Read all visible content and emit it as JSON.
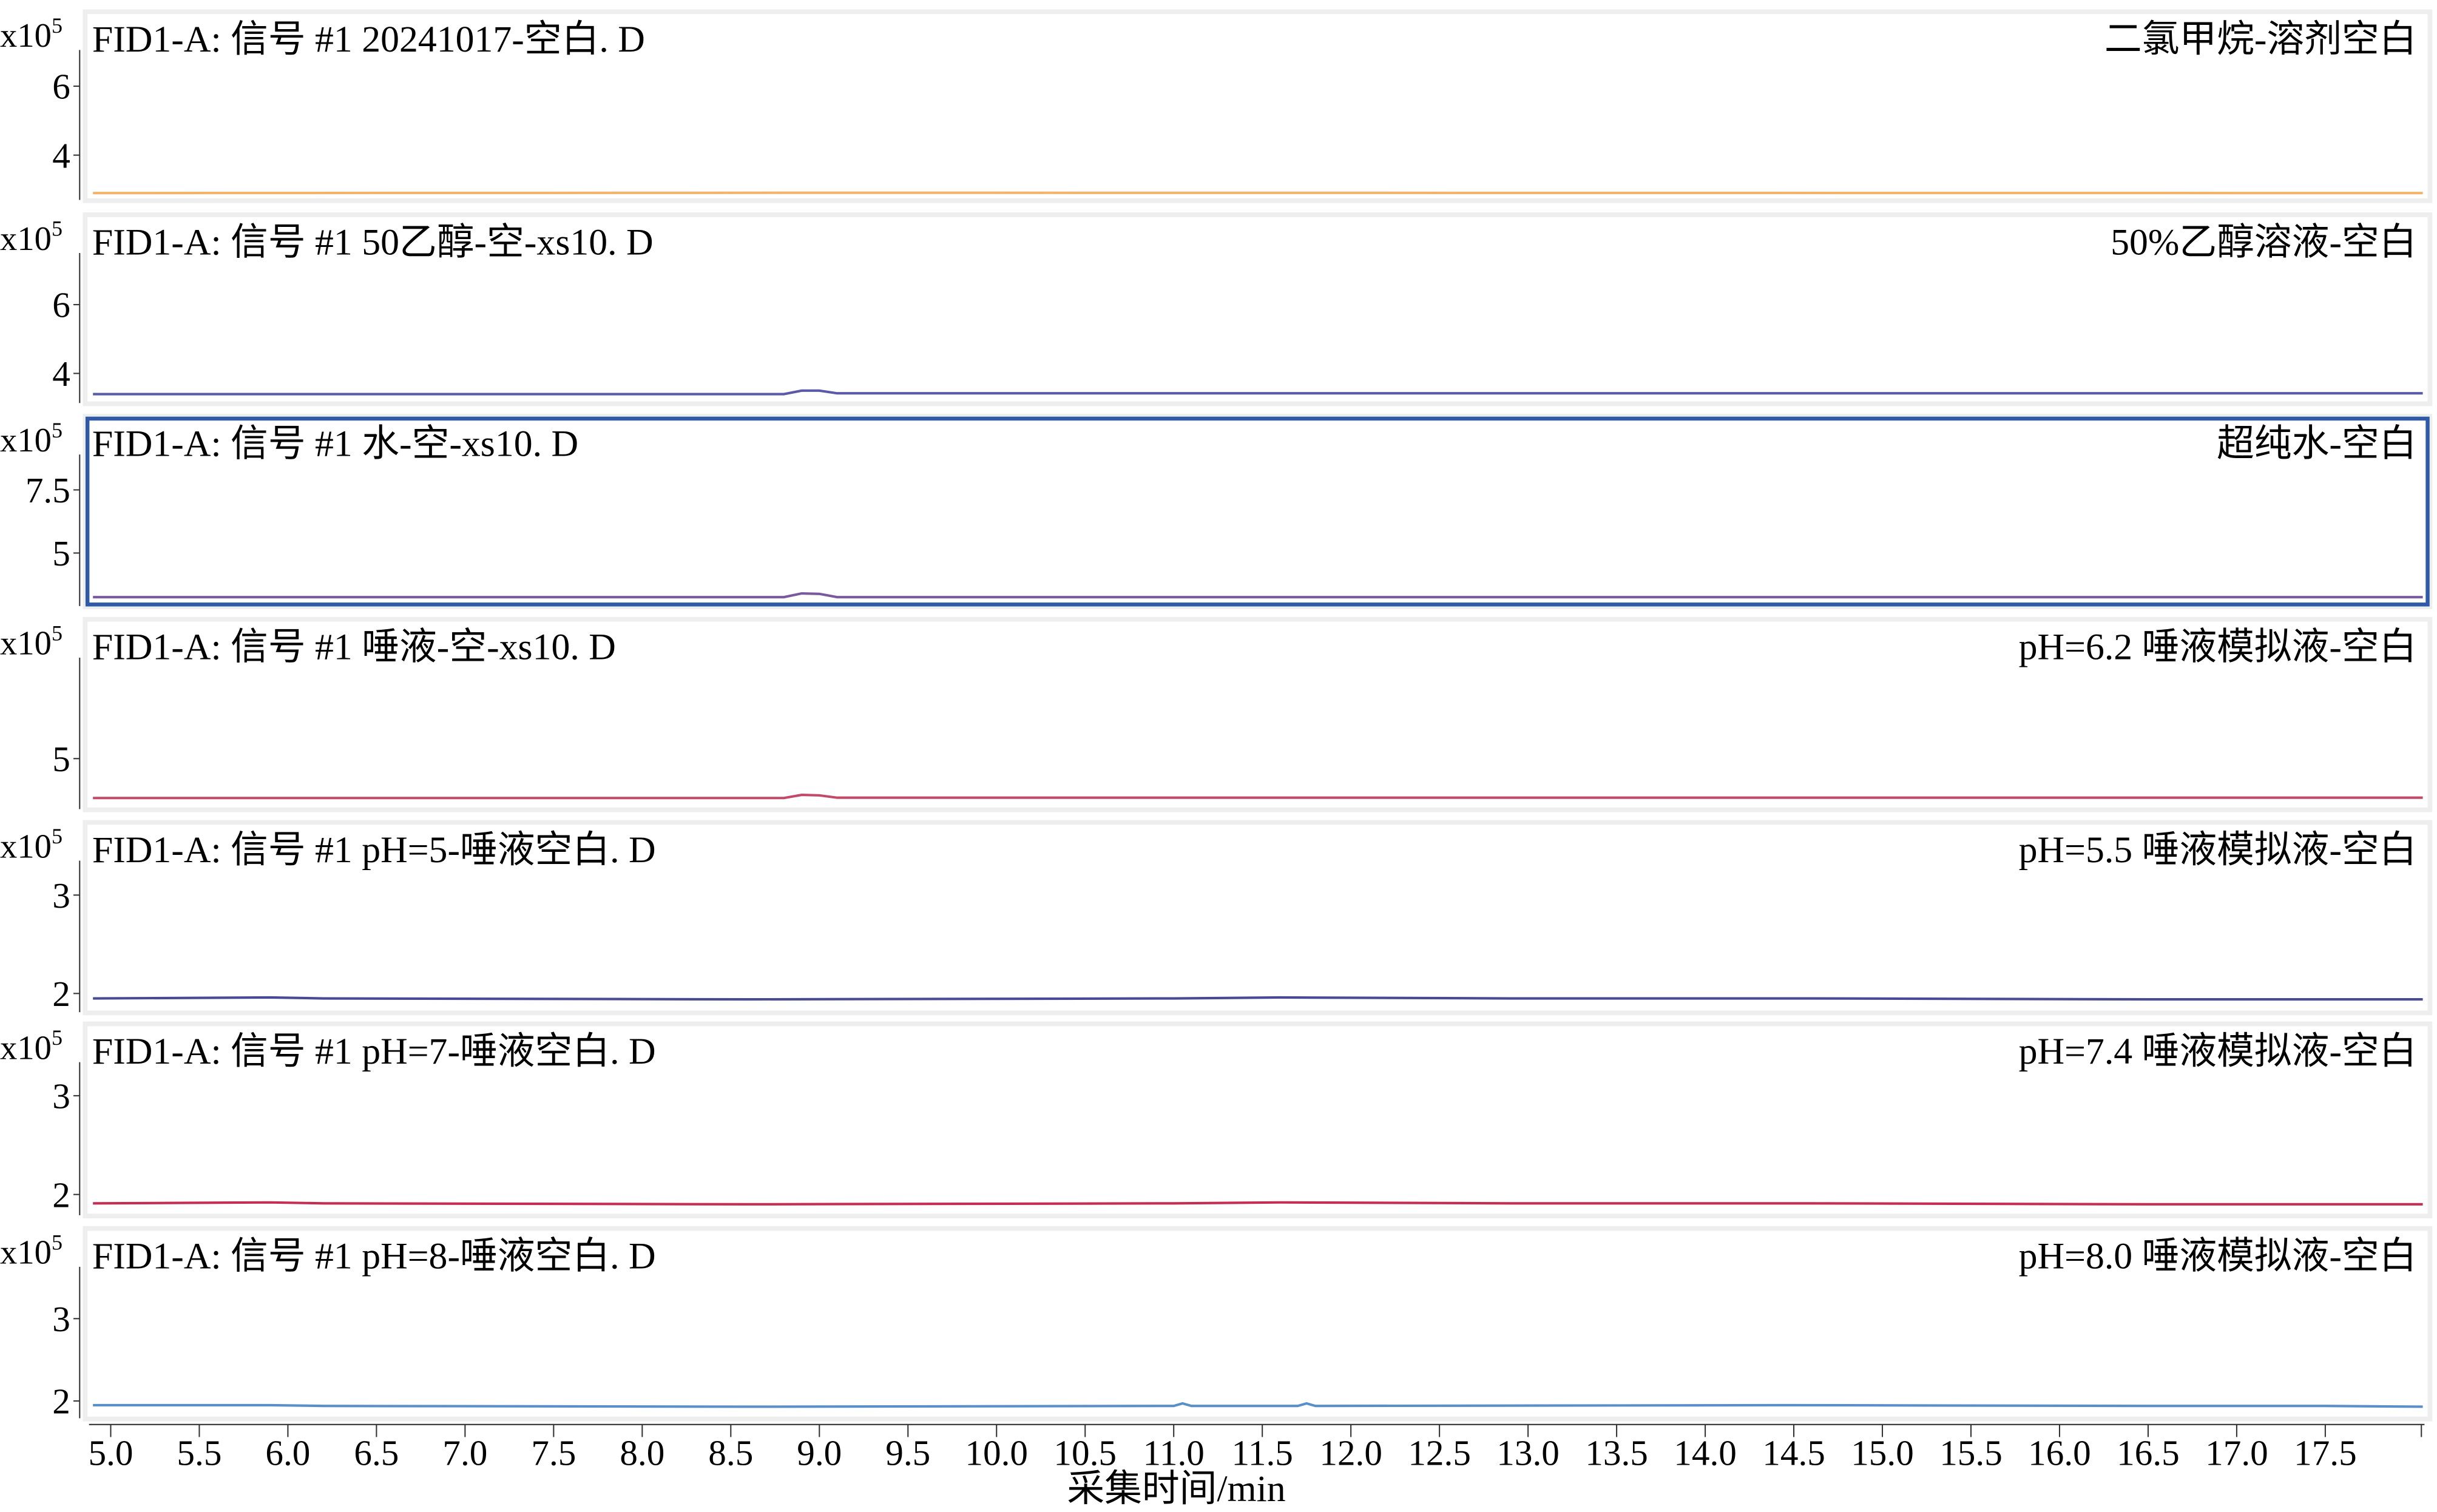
{
  "chart_data": [
    {
      "type": "line",
      "title": "FID1-A: 信号  #1  20241017-空白. D",
      "label": "二氯甲烷-溶剂空白",
      "yunit": "x10",
      "yexp": "5",
      "yticks": [
        4,
        6
      ],
      "ylim": [
        2.7,
        7.05
      ],
      "color": "#f2b36b",
      "x": [
        4.9,
        9.0,
        18.05
      ],
      "y": [
        2.9,
        2.91,
        2.9
      ]
    },
    {
      "type": "line",
      "title": "FID1-A: 信号  #1  50乙醇-空-xs10. D",
      "label": "50%乙醇溶液-空白",
      "yunit": "x10",
      "yexp": "5",
      "yticks": [
        4,
        6
      ],
      "ylim": [
        3.14,
        7.5
      ],
      "color": "#5a5aa8",
      "x": [
        4.9,
        8.8,
        8.9,
        9.0,
        9.1,
        15.5,
        18.05
      ],
      "y": [
        3.4,
        3.4,
        3.5,
        3.5,
        3.42,
        3.42,
        3.42
      ]
    },
    {
      "type": "line",
      "title": "FID1-A: 信号  #1  水-空-xs10. D",
      "label": "超纯水-空白",
      "yunit": "x10",
      "yexp": "5",
      "yticks": [
        5,
        7.5
      ],
      "ylim": [
        2.9,
        8.9
      ],
      "color": "#7a5a9c",
      "selected": true,
      "x": [
        4.9,
        8.8,
        8.9,
        9.0,
        9.1,
        18.05
      ],
      "y": [
        3.25,
        3.25,
        3.4,
        3.38,
        3.25,
        3.25
      ]
    },
    {
      "type": "line",
      "title": "FID1-A: 信号  #1  唾液-空-xs10. D",
      "label": "pH=6.2 唾液模拟液-空白",
      "yunit": "x10",
      "yexp": "5",
      "yticks": [
        5
      ],
      "ylim": [
        3.72,
        7.56
      ],
      "color": "#c24a68",
      "x": [
        4.9,
        8.8,
        8.9,
        9.0,
        9.1,
        18.05
      ],
      "y": [
        4.0,
        4.0,
        4.08,
        4.07,
        4.01,
        4.01
      ]
    },
    {
      "type": "line",
      "title": "FID1-A: 信号  #1 pH=5-唾液空白. D",
      "label": "pH=5.5 唾液模拟液-空白",
      "yunit": "x10",
      "yexp": "5",
      "yticks": [
        2,
        3
      ],
      "ylim": [
        1.81,
        3.35
      ],
      "color": "#4a4a94",
      "x": [
        4.9,
        5.9,
        6.2,
        8.6,
        11.0,
        11.6,
        12.9,
        14.6,
        16.5,
        18.05
      ],
      "y": [
        1.95,
        1.96,
        1.95,
        1.94,
        1.95,
        1.96,
        1.95,
        1.95,
        1.94,
        1.94
      ]
    },
    {
      "type": "line",
      "title": "FID1-A: 信号  #1 pH=7-唾液空白. D",
      "label": "pH=7.4 唾液模拟液-空白",
      "yunit": "x10",
      "yexp": "5",
      "yticks": [
        2,
        3
      ],
      "ylim": [
        1.79,
        3.34
      ],
      "color": "#c42e52",
      "x": [
        4.9,
        5.9,
        6.2,
        8.6,
        11.0,
        11.6,
        12.9,
        14.6,
        16.5,
        18.05
      ],
      "y": [
        1.91,
        1.92,
        1.91,
        1.9,
        1.91,
        1.92,
        1.91,
        1.91,
        1.9,
        1.9
      ]
    },
    {
      "type": "line",
      "title": "FID1-A: 信号  #1 pH=8-唾液空白. D",
      "label": "pH=8.0 唾液模拟液-空白",
      "yunit": "x10",
      "yexp": "5",
      "yticks": [
        2,
        3
      ],
      "ylim": [
        1.79,
        3.63
      ],
      "color": "#5b8fc8",
      "x": [
        4.9,
        5.9,
        6.2,
        8.6,
        11.0,
        11.05,
        11.1,
        11.7,
        11.75,
        11.8,
        14.5,
        16.5,
        17.5,
        18.05
      ],
      "y": [
        1.95,
        1.95,
        1.94,
        1.93,
        1.94,
        1.97,
        1.94,
        1.94,
        1.97,
        1.94,
        1.95,
        1.94,
        1.94,
        1.93
      ]
    }
  ],
  "xaxis": {
    "label": "采集时间/min",
    "ticks": [
      "5.0",
      "5.5",
      "6.0",
      "6.5",
      "7.0",
      "7.5",
      "8.0",
      "8.5",
      "9.0",
      "9.5",
      "10.0",
      "10.5",
      "11.0",
      "11.5",
      "12.0",
      "12.5",
      "13.0",
      "13.5",
      "14.0",
      "14.5",
      "15.0",
      "15.5",
      "16.0",
      "16.5",
      "17.0",
      "17.5"
    ],
    "xlim": [
      4.86,
      18.06
    ]
  },
  "colors": {
    "panel_bg": "#eeeeee",
    "selected_border": "#2e5aa8"
  }
}
